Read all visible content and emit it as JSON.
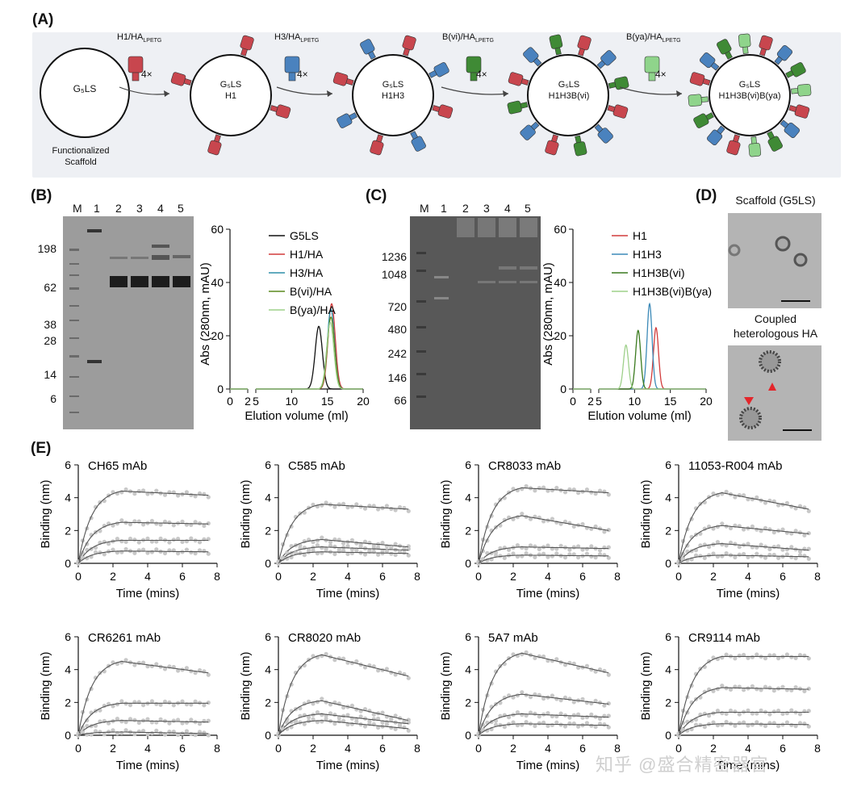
{
  "panels": {
    "A": "(A)",
    "B": "(B)",
    "C": "(C)",
    "D": "(D)",
    "E": "(E)"
  },
  "panelA": {
    "scaffold_text": "G₅LS",
    "scaffold_caption": "Functionalized\nScaffold",
    "steps": [
      {
        "reagent": "H1/HA",
        "sub": "LPETG",
        "mult": "4×",
        "particle": [
          "G₅LS",
          "H1"
        ]
      },
      {
        "reagent": "H3/HA",
        "sub": "LPETG",
        "mult": "4×",
        "particle": [
          "G₅LS",
          "H1H3"
        ]
      },
      {
        "reagent": "B(vi)/HA",
        "sub": "LPETG",
        "mult": "4×",
        "particle": [
          "G₅LS",
          "H1H3B(vi)"
        ]
      },
      {
        "reagent": "B(ya)/HA",
        "sub": "LPETG",
        "mult": "4×",
        "particle": [
          "G₅LS",
          "H1H3B(vi)B(ya)"
        ]
      }
    ],
    "colors": {
      "H1": "#c8464e",
      "H3": "#4a82be",
      "Bvi": "#3f8a35",
      "Bya": "#8fd48b"
    }
  },
  "panelB": {
    "lanes": [
      "M",
      "1",
      "2",
      "3",
      "4",
      "5"
    ],
    "mw_markers": [
      "198",
      "62",
      "38",
      "28",
      "14",
      "6"
    ]
  },
  "panelC": {
    "lanes": [
      "M",
      "1",
      "2",
      "3",
      "4",
      "5"
    ],
    "mw_markers": [
      "1236",
      "1048",
      "720",
      "480",
      "242",
      "146",
      "66"
    ]
  },
  "panelD": {
    "title1": "Scaffold (G5LS)",
    "title2": "Coupled\nheterologous HA"
  },
  "chart_data": [
    {
      "id": "B-sec",
      "type": "line",
      "xlabel": "Elution volume (ml)",
      "ylabel": "Abs (280nm, mAU)",
      "xticks": [
        0,
        2,
        5,
        10,
        15,
        20
      ],
      "yticks": [
        0,
        20,
        40,
        60
      ],
      "ylim": [
        0,
        60
      ],
      "xbreak": [
        2,
        5
      ],
      "series": [
        {
          "name": "G5LS",
          "color": "#111111",
          "peak": 13.8,
          "height": 23.5,
          "width": 0.5
        },
        {
          "name": "H1/HA",
          "color": "#d23c3c",
          "peak": 15.6,
          "height": 32,
          "width": 0.5
        },
        {
          "name": "H3/HA",
          "color": "#2f8fa8",
          "peak": 15.5,
          "height": 30,
          "width": 0.5
        },
        {
          "name": "B(vi)/HA",
          "color": "#5a8a1e",
          "peak": 15.5,
          "height": 27,
          "width": 0.5
        },
        {
          "name": "B(ya)/HA",
          "color": "#9ed08a",
          "peak": 15.4,
          "height": 25,
          "width": 0.5
        }
      ]
    },
    {
      "id": "C-sec",
      "type": "line",
      "xlabel": "Elution volume (ml)",
      "ylabel": "Abs (280nm, mAU)",
      "xticks": [
        0,
        2,
        5,
        10,
        15,
        20
      ],
      "yticks": [
        0,
        20,
        40,
        60
      ],
      "ylim": [
        0,
        60
      ],
      "xbreak": [
        2,
        5
      ],
      "series": [
        {
          "name": "H1",
          "color": "#d23c3c",
          "peak": 13.0,
          "height": 23,
          "width": 0.35
        },
        {
          "name": "H1H3",
          "color": "#3d8ab8",
          "peak": 12.1,
          "height": 32,
          "width": 0.35
        },
        {
          "name": "H1H3B(vi)",
          "color": "#3a7a1e",
          "peak": 10.5,
          "height": 22,
          "width": 0.35
        },
        {
          "name": "H1H3B(vi)B(ya)",
          "color": "#9ed08a",
          "peak": 8.8,
          "height": 16.5,
          "width": 0.35
        }
      ]
    },
    {
      "id": "CH65",
      "type": "line",
      "title": "CH65 mAb",
      "xlabel": "Time (mins)",
      "ylabel": "Binding (nm)",
      "xticks": [
        0,
        2,
        4,
        6,
        8
      ],
      "yticks": [
        0,
        2,
        4,
        6
      ],
      "ylim": [
        0,
        6
      ],
      "assoc_end": 2.5,
      "end": 7.5,
      "series": [
        {
          "name": "",
          "plateau": 4.4,
          "final": 4.15
        },
        {
          "name": "",
          "plateau": 2.5,
          "final": 2.4
        },
        {
          "name": "",
          "plateau": 1.4,
          "final": 1.4
        },
        {
          "name": "",
          "plateau": 0.75,
          "final": 0.7
        }
      ]
    },
    {
      "id": "C585",
      "type": "line",
      "title": "C585 mAb",
      "xlabel": "Time (mins)",
      "ylabel": "Binding (nm)",
      "xticks": [
        0,
        2,
        4,
        6,
        8
      ],
      "yticks": [
        0,
        2,
        4,
        6
      ],
      "ylim": [
        0,
        6
      ],
      "assoc_end": 2.5,
      "end": 7.5,
      "series": [
        {
          "name": "",
          "plateau": 3.6,
          "final": 3.3
        },
        {
          "name": "",
          "plateau": 1.45,
          "final": 1.0
        },
        {
          "name": "",
          "plateau": 1.0,
          "final": 0.8
        },
        {
          "name": "",
          "plateau": 0.7,
          "final": 0.6
        }
      ]
    },
    {
      "id": "CR8033",
      "type": "line",
      "title": "CR8033 mAb",
      "xlabel": "Time (mins)",
      "ylabel": "Binding (nm)",
      "xticks": [
        0,
        2,
        4,
        6,
        8
      ],
      "yticks": [
        0,
        2,
        4,
        6
      ],
      "ylim": [
        0,
        6
      ],
      "assoc_end": 2.5,
      "end": 7.5,
      "series": [
        {
          "name": "",
          "plateau": 4.6,
          "final": 4.3
        },
        {
          "name": "",
          "plateau": 2.9,
          "final": 2.0
        },
        {
          "name": "",
          "plateau": 1.0,
          "final": 0.9
        },
        {
          "name": "",
          "plateau": 0.5,
          "final": 0.45
        }
      ]
    },
    {
      "id": "11053",
      "type": "line",
      "title": "11053-R004 mAb",
      "xlabel": "Time (mins)",
      "ylabel": "Binding (nm)",
      "xticks": [
        0,
        2,
        4,
        6,
        8
      ],
      "yticks": [
        0,
        2,
        4,
        6
      ],
      "ylim": [
        0,
        6
      ],
      "assoc_end": 2.5,
      "end": 7.5,
      "series": [
        {
          "name": "",
          "plateau": 4.3,
          "final": 3.3
        },
        {
          "name": "",
          "plateau": 2.3,
          "final": 1.8
        },
        {
          "name": "",
          "plateau": 1.2,
          "final": 0.8
        },
        {
          "name": "",
          "plateau": 0.5,
          "final": 0.4
        }
      ]
    },
    {
      "id": "CR6261",
      "type": "line",
      "title": "CR6261 mAb",
      "xlabel": "Time (mins)",
      "ylabel": "Binding (nm)",
      "xticks": [
        0,
        2,
        4,
        6,
        8
      ],
      "yticks": [
        0,
        2,
        4,
        6
      ],
      "ylim": [
        0,
        6
      ],
      "assoc_end": 2.5,
      "end": 7.5,
      "series": [
        {
          "name": "",
          "plateau": 4.5,
          "final": 3.8
        },
        {
          "name": "",
          "plateau": 1.95,
          "final": 1.95
        },
        {
          "name": "",
          "plateau": 0.9,
          "final": 0.8
        },
        {
          "name": "",
          "plateau": 0.2,
          "final": 0.1
        }
      ]
    },
    {
      "id": "CR8020",
      "type": "line",
      "title": "CR8020 mAb",
      "xlabel": "Time (mins)",
      "ylabel": "Binding (nm)",
      "xticks": [
        0,
        2,
        4,
        6,
        8
      ],
      "yticks": [
        0,
        2,
        4,
        6
      ],
      "ylim": [
        0,
        6
      ],
      "assoc_end": 2.5,
      "end": 7.5,
      "series": [
        {
          "name": "",
          "plateau": 4.9,
          "final": 3.6
        },
        {
          "name": "",
          "plateau": 2.1,
          "final": 0.9
        },
        {
          "name": "",
          "plateau": 1.3,
          "final": 0.7
        },
        {
          "name": "",
          "plateau": 0.9,
          "final": 0.4
        }
      ]
    },
    {
      "id": "5A7",
      "type": "line",
      "title": "5A7 mAb",
      "xlabel": "Time (mins)",
      "ylabel": "Binding (nm)",
      "xticks": [
        0,
        2,
        4,
        6,
        8
      ],
      "yticks": [
        0,
        2,
        4,
        6
      ],
      "ylim": [
        0,
        6
      ],
      "assoc_end": 2.5,
      "end": 7.5,
      "series": [
        {
          "name": "",
          "plateau": 5.0,
          "final": 3.8
        },
        {
          "name": "",
          "plateau": 2.5,
          "final": 1.9
        },
        {
          "name": "",
          "plateau": 1.3,
          "final": 1.1
        },
        {
          "name": "",
          "plateau": 0.7,
          "final": 0.6
        }
      ]
    },
    {
      "id": "CR9114",
      "type": "line",
      "title": "CR9114 mAb",
      "xlabel": "Time (mins)",
      "ylabel": "Binding (nm)",
      "xticks": [
        0,
        2,
        4,
        6,
        8
      ],
      "yticks": [
        0,
        2,
        4,
        6
      ],
      "ylim": [
        0,
        6
      ],
      "assoc_end": 2.5,
      "end": 7.5,
      "series": [
        {
          "name": "",
          "plateau": 4.8,
          "final": 4.8
        },
        {
          "name": "",
          "plateau": 2.9,
          "final": 2.8
        },
        {
          "name": "",
          "plateau": 1.4,
          "final": 1.4
        },
        {
          "name": "",
          "plateau": 0.7,
          "final": 0.65
        }
      ]
    }
  ],
  "watermark": "知乎 @盛合精密器官"
}
